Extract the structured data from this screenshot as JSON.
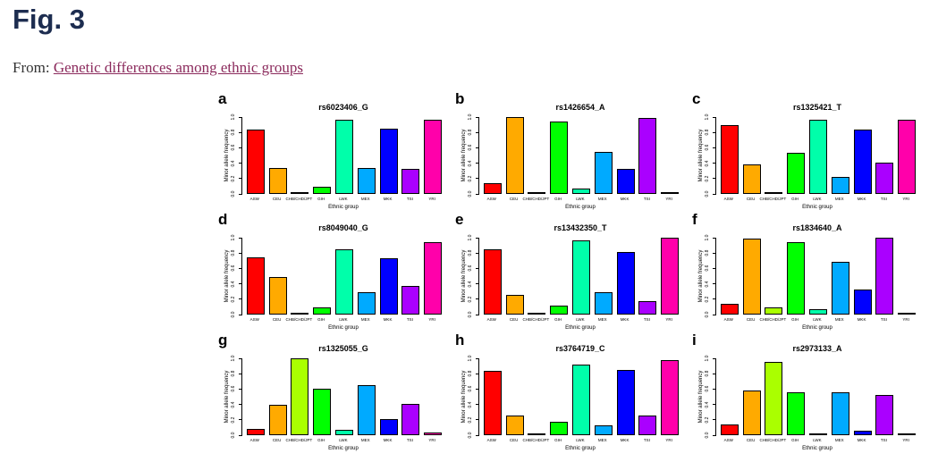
{
  "page": {
    "title": "Fig. 3",
    "from_label": "From:",
    "source_link": "Genetic differences among ethnic groups"
  },
  "colors": {
    "heading": "#1d2d50",
    "link": "#8b2a5c",
    "bar_border": "#000000"
  },
  "chart_data": {
    "type": "bar",
    "categories": [
      "ASW",
      "CEU",
      "CHB/CHD/JPT",
      "GIH",
      "LWK",
      "MEX",
      "MKK",
      "TSI",
      "YRI"
    ],
    "bar_colors": [
      "#FF0000",
      "#FFAA00",
      "#AAFF00",
      "#00FF00",
      "#00FFAA",
      "#00AAFF",
      "#0000FF",
      "#AA00FF",
      "#FF00AA"
    ],
    "xlabel": "Ethnic group",
    "ylabel": "Minor allele frequency",
    "ylim": [
      0,
      1
    ],
    "yticks": [
      "0.0",
      "0.2",
      "0.4",
      "0.6",
      "0.8",
      "1.0"
    ],
    "grid": false,
    "legend": "none",
    "layout": "3x3",
    "panels": [
      {
        "letter": "a",
        "title": "rs6023406_G",
        "values": [
          0.84,
          0.34,
          0.01,
          0.09,
          0.97,
          0.34,
          0.85,
          0.32,
          0.97
        ]
      },
      {
        "letter": "b",
        "title": "rs1426654_A",
        "values": [
          0.14,
          1.0,
          0.02,
          0.94,
          0.07,
          0.55,
          0.32,
          0.99,
          0.01
        ]
      },
      {
        "letter": "c",
        "title": "rs1325421_T",
        "values": [
          0.9,
          0.38,
          0.02,
          0.54,
          0.96,
          0.22,
          0.84,
          0.41,
          0.97
        ]
      },
      {
        "letter": "d",
        "title": "rs8049040_G",
        "values": [
          0.74,
          0.49,
          0.01,
          0.09,
          0.85,
          0.29,
          0.73,
          0.37,
          0.94
        ]
      },
      {
        "letter": "e",
        "title": "rs13432350_T",
        "values": [
          0.85,
          0.26,
          0.02,
          0.12,
          0.97,
          0.29,
          0.81,
          0.18,
          1.0
        ]
      },
      {
        "letter": "f",
        "title": "rs1834640_A",
        "values": [
          0.14,
          0.99,
          0.09,
          0.94,
          0.07,
          0.69,
          0.33,
          1.0,
          0.02
        ]
      },
      {
        "letter": "g",
        "title": "rs1325055_G",
        "values": [
          0.08,
          0.4,
          1.0,
          0.61,
          0.07,
          0.65,
          0.21,
          0.41,
          0.04
        ]
      },
      {
        "letter": "h",
        "title": "rs3764719_C",
        "values": [
          0.84,
          0.26,
          0.01,
          0.17,
          0.92,
          0.13,
          0.85,
          0.26,
          0.98
        ]
      },
      {
        "letter": "i",
        "title": "rs2973133_A",
        "values": [
          0.14,
          0.58,
          0.95,
          0.56,
          0.01,
          0.56,
          0.06,
          0.52,
          0.01
        ]
      }
    ]
  }
}
